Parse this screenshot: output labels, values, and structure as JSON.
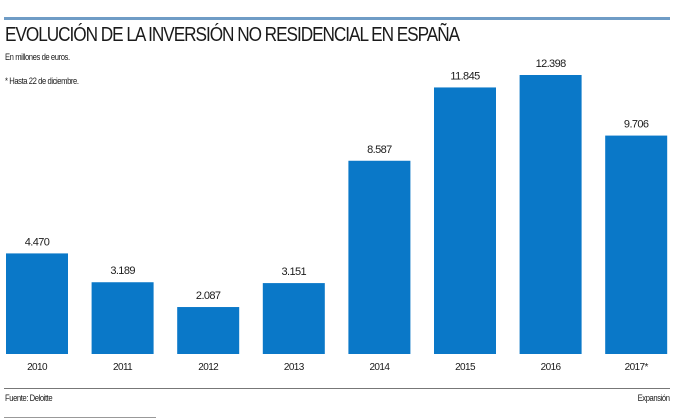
{
  "chart_data": {
    "type": "bar",
    "title": "EVOLUCIÓN DE LA INVERSIÓN NO RESIDENCIAL EN ESPAÑA",
    "subtitle": "En millones de euros.",
    "note": "* Hasta 22 de diciembre.",
    "categories": [
      "2010",
      "2011",
      "2012",
      "2013",
      "2014",
      "2015",
      "2016",
      "2017*"
    ],
    "values": [
      4470,
      3189,
      2087,
      3151,
      8587,
      11845,
      12398,
      9706
    ],
    "value_labels": [
      "4.470",
      "3.189",
      "2.087",
      "3.151",
      "8.587",
      "11.845",
      "12.398",
      "9.706"
    ],
    "ylim": [
      0,
      12398
    ],
    "grid": false,
    "bar_color": "#0a78c8",
    "source": "Fuente: Deloitte",
    "credit": "Expansión"
  }
}
